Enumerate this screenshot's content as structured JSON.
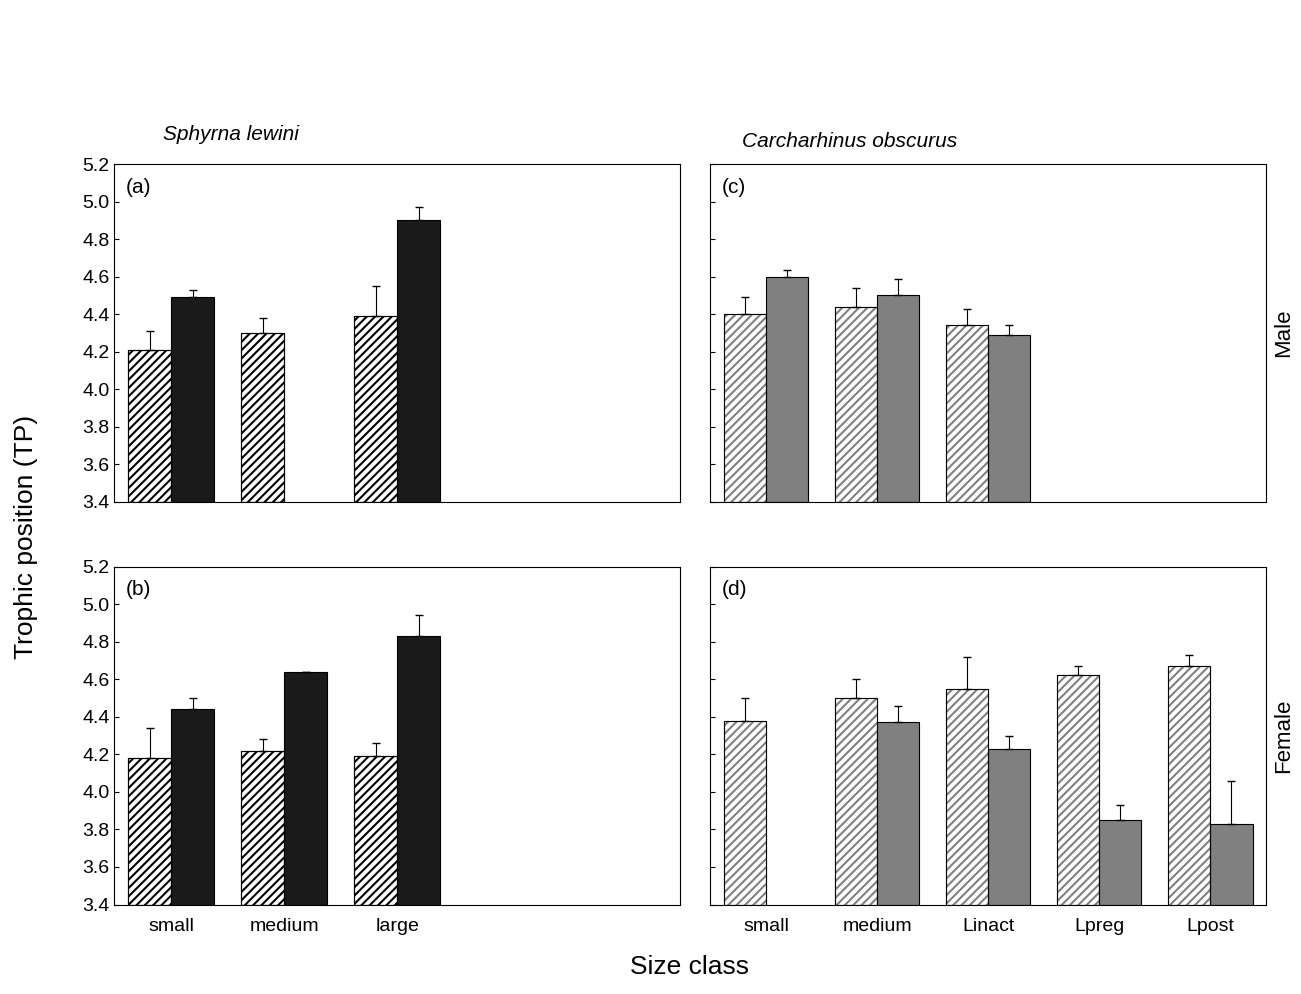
{
  "figure": {
    "y_label": "Trophic position (TP)",
    "x_label": "Size class",
    "column_titles": [
      "Sphyrna lewini",
      "Carcharhinus obscurus"
    ],
    "row_labels": [
      "Male",
      "Female"
    ]
  },
  "chart_data": [
    {
      "type": "bar",
      "title": "(a)",
      "tick_labels": "y",
      "categories": [
        "small",
        "medium",
        "large",
        null,
        null
      ],
      "series": [
        {
          "color": "#000000",
          "values": [
            4.21,
            4.3,
            4.39,
            null,
            null
          ],
          "errors": [
            0.1,
            0.08,
            0.16,
            null,
            null
          ]
        },
        {
          "color": "#1a1a1a",
          "values": [
            4.49,
            null,
            4.9,
            null,
            null
          ],
          "errors": [
            0.04,
            null,
            0.07,
            null,
            null
          ]
        }
      ],
      "ylim": [
        3.4,
        5.2
      ],
      "yticks": [
        3.4,
        3.6,
        3.8,
        {
          "value": 4,
          "label": "4.0"
        },
        4.2,
        4.4,
        4.6,
        4.8,
        {
          "value": 5,
          "label": "5.0"
        },
        5.2
      ]
    },
    {
      "type": "bar",
      "title": "(b)",
      "categories": [
        "small",
        "medium",
        "large",
        null,
        null
      ],
      "series": [
        {
          "color": "#000000",
          "values": [
            4.18,
            4.22,
            4.19,
            null,
            null
          ],
          "errors": [
            0.16,
            0.06,
            0.07,
            null,
            null
          ]
        },
        {
          "color": "#1a1a1a",
          "values": [
            4.44,
            4.64,
            4.83,
            null,
            null
          ],
          "errors": [
            0.06,
            0,
            0.11,
            null,
            null
          ]
        }
      ],
      "ylim": [
        3.4,
        5.2
      ],
      "yticks": [
        3.4,
        3.6,
        3.8,
        {
          "value": 4,
          "label": "4.0"
        },
        4.2,
        4.4,
        4.6,
        4.8,
        {
          "value": 5,
          "label": "5.0"
        },
        5.2
      ]
    },
    {
      "type": "bar",
      "title": "(c)",
      "tick_labels": false,
      "categories": [
        "small",
        "medium",
        "Linact",
        null,
        null
      ],
      "series": [
        {
          "color": "#808080",
          "values": [
            4.4,
            4.44,
            4.34,
            null,
            null
          ],
          "errors": [
            0.09,
            0.1,
            0.09,
            null,
            null
          ]
        },
        {
          "color": "#808080",
          "values": [
            4.6,
            4.5,
            4.29,
            null,
            null
          ],
          "errors": [
            0.035,
            0.09,
            0.05,
            null,
            null
          ]
        }
      ],
      "ylim": [
        3.4,
        5.2
      ],
      "yticks": [
        3.4,
        3.6,
        3.8,
        {
          "value": 4,
          "label": "4.0"
        },
        4.2,
        4.4,
        4.6,
        4.8,
        {
          "value": 5,
          "label": "5.0"
        },
        5.2
      ]
    },
    {
      "type": "bar",
      "title": "(d)",
      "tick_labels": "x",
      "categories": [
        "small",
        "medium",
        "Linact",
        "Lpreg",
        "Lpost"
      ],
      "series": [
        {
          "color": "#808080",
          "values": [
            4.38,
            4.5,
            4.55,
            4.62,
            4.67
          ],
          "errors": [
            0.12,
            0.1,
            0.17,
            0.05,
            0.06
          ]
        },
        {
          "color": "#808080",
          "values": [
            null,
            4.37,
            4.23,
            3.85,
            3.83
          ],
          "errors": [
            null,
            0.09,
            0.07,
            0.08,
            0.23
          ]
        }
      ],
      "ylim": [
        3.4,
        5.2
      ],
      "yticks": [
        3.4,
        3.6,
        3.8,
        {
          "value": 4,
          "label": "4.0"
        },
        4.2,
        4.4,
        4.6,
        4.8,
        {
          "value": 5,
          "label": "5.0"
        },
        5.2
      ]
    }
  ]
}
